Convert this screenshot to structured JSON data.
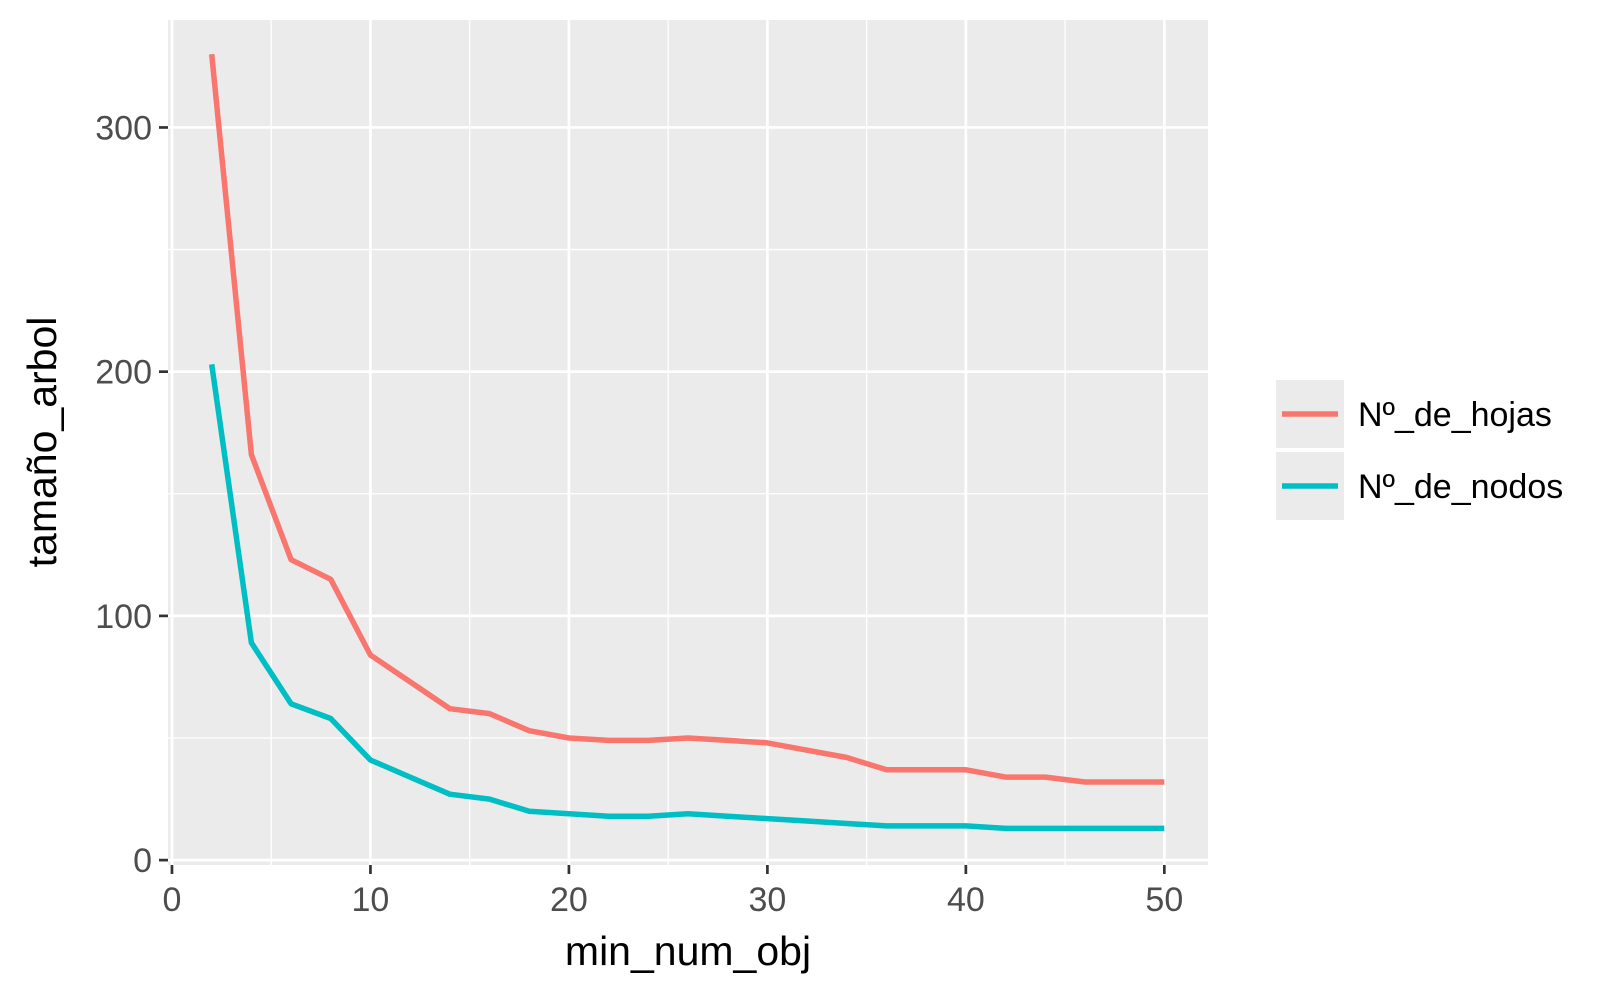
{
  "chart_data": {
    "type": "line",
    "xlabel": "min_num_obj",
    "ylabel": "tamaño_arbol",
    "xlim": [
      -0.2,
      52.2
    ],
    "ylim": [
      -2,
      344
    ],
    "x_ticks": [
      0,
      10,
      20,
      30,
      40,
      50
    ],
    "y_ticks": [
      0,
      100,
      200,
      300
    ],
    "grid": true,
    "legend": "right",
    "x": [
      2,
      4,
      6,
      8,
      10,
      12,
      14,
      16,
      18,
      20,
      22,
      24,
      26,
      28,
      30,
      32,
      34,
      36,
      38,
      40,
      42,
      44,
      46,
      48,
      50
    ],
    "series": [
      {
        "name": "Nº_de_hojas",
        "color": "#F8766D",
        "values": [
          330,
          166,
          123,
          115,
          84,
          73,
          62,
          60,
          53,
          50,
          49,
          49,
          50,
          49,
          48,
          45,
          42,
          37,
          37,
          37,
          34,
          34,
          32,
          32,
          32
        ]
      },
      {
        "name": "Nº_de_nodos",
        "color": "#00BFC4",
        "values": [
          203,
          89,
          64,
          58,
          41,
          34,
          27,
          25,
          20,
          19,
          18,
          18,
          19,
          18,
          17,
          16,
          15,
          14,
          14,
          14,
          13,
          13,
          13,
          13,
          13
        ]
      }
    ]
  }
}
